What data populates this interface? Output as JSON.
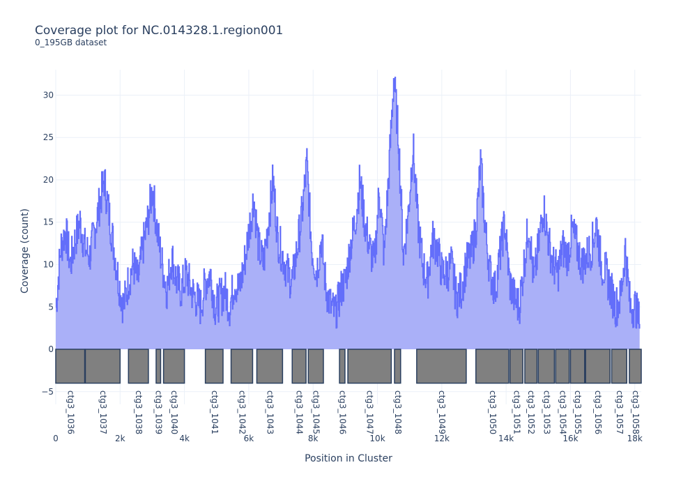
{
  "chart_data": {
    "type": "area",
    "title": "Coverage plot for NC.014328.1.region001",
    "subtitle": "0_195GB dataset",
    "xlabel": "Position in Cluster",
    "ylabel": "Coverage (count)",
    "xlim": [
      0,
      18200
    ],
    "ylim": [
      -6.5,
      33
    ],
    "x_ticks": [
      {
        "value": 0,
        "label": "0"
      },
      {
        "value": 2000,
        "label": "2k"
      },
      {
        "value": 4000,
        "label": "4k"
      },
      {
        "value": 6000,
        "label": "6k"
      },
      {
        "value": 8000,
        "label": "8k"
      },
      {
        "value": 10000,
        "label": "10k"
      },
      {
        "value": 12000,
        "label": "12k"
      },
      {
        "value": 14000,
        "label": "14k"
      },
      {
        "value": 16000,
        "label": "16k"
      },
      {
        "value": 18000,
        "label": "18k"
      }
    ],
    "y_ticks": [
      {
        "value": -5,
        "label": "−5"
      },
      {
        "value": 0,
        "label": "0"
      },
      {
        "value": 5,
        "label": "5"
      },
      {
        "value": 10,
        "label": "10"
      },
      {
        "value": 15,
        "label": "15"
      },
      {
        "value": 20,
        "label": "20"
      },
      {
        "value": 25,
        "label": "25"
      },
      {
        "value": 30,
        "label": "30"
      }
    ],
    "grid": true,
    "series": [
      {
        "color": "#636efa",
        "fill_color": "#aab0f8",
        "x": [
          0,
          150,
          300,
          450,
          600,
          750,
          900,
          1050,
          1200,
          1350,
          1500,
          1650,
          1800,
          1950,
          2100,
          2250,
          2400,
          2550,
          2700,
          2850,
          3000,
          3150,
          3300,
          3450,
          3600,
          3750,
          3900,
          4050,
          4200,
          4350,
          4500,
          4650,
          4800,
          4950,
          5100,
          5250,
          5400,
          5550,
          5700,
          5850,
          6000,
          6150,
          6300,
          6450,
          6600,
          6750,
          6900,
          7050,
          7200,
          7350,
          7500,
          7650,
          7800,
          7950,
          8100,
          8250,
          8400,
          8550,
          8700,
          8850,
          9000,
          9150,
          9300,
          9450,
          9600,
          9750,
          9900,
          10050,
          10200,
          10350,
          10500,
          10650,
          10800,
          10950,
          11100,
          11250,
          11400,
          11550,
          11700,
          11850,
          12000,
          12150,
          12300,
          12450,
          12600,
          12750,
          12900,
          13050,
          13200,
          13350,
          13500,
          13650,
          13800,
          13950,
          14100,
          14250,
          14400,
          14550,
          14700,
          14850,
          15000,
          15150,
          15300,
          15450,
          15600,
          15750,
          15900,
          16050,
          16200,
          16350,
          16500,
          16650,
          16800,
          16950,
          17100,
          17250,
          17400,
          17550,
          17700,
          17850,
          18000,
          18150
        ],
        "y": [
          5,
          12,
          14,
          10,
          13,
          15,
          12,
          11,
          14,
          17,
          20,
          16,
          12,
          8,
          5,
          8,
          10,
          8,
          12,
          15,
          19,
          14,
          10,
          7,
          11,
          8,
          7,
          9,
          7,
          6,
          5,
          8,
          9,
          5,
          6,
          7,
          5,
          8,
          7,
          10,
          14,
          18,
          12,
          10,
          15,
          20,
          13,
          11,
          9,
          8,
          12,
          16,
          22,
          12,
          9,
          13,
          7,
          5,
          4,
          7,
          8,
          12,
          15,
          20,
          15,
          12,
          10,
          19,
          11,
          21,
          32,
          25,
          11,
          16,
          24,
          15,
          10,
          8,
          13,
          12,
          9,
          9,
          10,
          6,
          7,
          10,
          11,
          14,
          22,
          14,
          9,
          7,
          11,
          15,
          8,
          6,
          5,
          10,
          15,
          8,
          12,
          17,
          13,
          10,
          9,
          12,
          11,
          14,
          12,
          10,
          11,
          12,
          15,
          10,
          9,
          7,
          5,
          6,
          12,
          5,
          5,
          3
        ]
      }
    ],
    "genes": [
      {
        "label": "ctg3_1036",
        "start": 0,
        "end": 900
      },
      {
        "label": "ctg3_1037",
        "start": 920,
        "end": 2000
      },
      {
        "label": "ctg3_1038",
        "start": 2260,
        "end": 2880
      },
      {
        "label": "ctg3_1039",
        "start": 3120,
        "end": 3260
      },
      {
        "label": "ctg3_1040",
        "start": 3350,
        "end": 4000
      },
      {
        "label": "ctg3_1041",
        "start": 4650,
        "end": 5200
      },
      {
        "label": "ctg3_1042",
        "start": 5450,
        "end": 6120
      },
      {
        "label": "ctg3_1043",
        "start": 6250,
        "end": 7050
      },
      {
        "label": "ctg3_1044",
        "start": 7350,
        "end": 7780
      },
      {
        "label": "ctg3_1045",
        "start": 7850,
        "end": 8320
      },
      {
        "label": "ctg3_1046",
        "start": 8820,
        "end": 8990
      },
      {
        "label": "ctg3_1047",
        "start": 9080,
        "end": 10430
      },
      {
        "label": "ctg3_1048",
        "start": 10530,
        "end": 10720
      },
      {
        "label": "ctg3_1049",
        "start": 11220,
        "end": 12760
      },
      {
        "label": "ctg3_1050",
        "start": 13060,
        "end": 14080
      },
      {
        "label": "ctg3_1051",
        "start": 14120,
        "end": 14520
      },
      {
        "label": "ctg3_1052",
        "start": 14580,
        "end": 14960
      },
      {
        "label": "ctg3_1053",
        "start": 15000,
        "end": 15500
      },
      {
        "label": "ctg3_1054",
        "start": 15540,
        "end": 15960
      },
      {
        "label": "ctg3_1055",
        "start": 16000,
        "end": 16440
      },
      {
        "label": "ctg3_1056",
        "start": 16470,
        "end": 17230
      },
      {
        "label": "ctg3_1057",
        "start": 17280,
        "end": 17750
      },
      {
        "label": "ctg3_1058",
        "start": 17830,
        "end": 18200
      }
    ],
    "gene_range": [
      -4,
      0
    ],
    "gene_color": "#808080",
    "gene_border": "#2a3f5f"
  }
}
